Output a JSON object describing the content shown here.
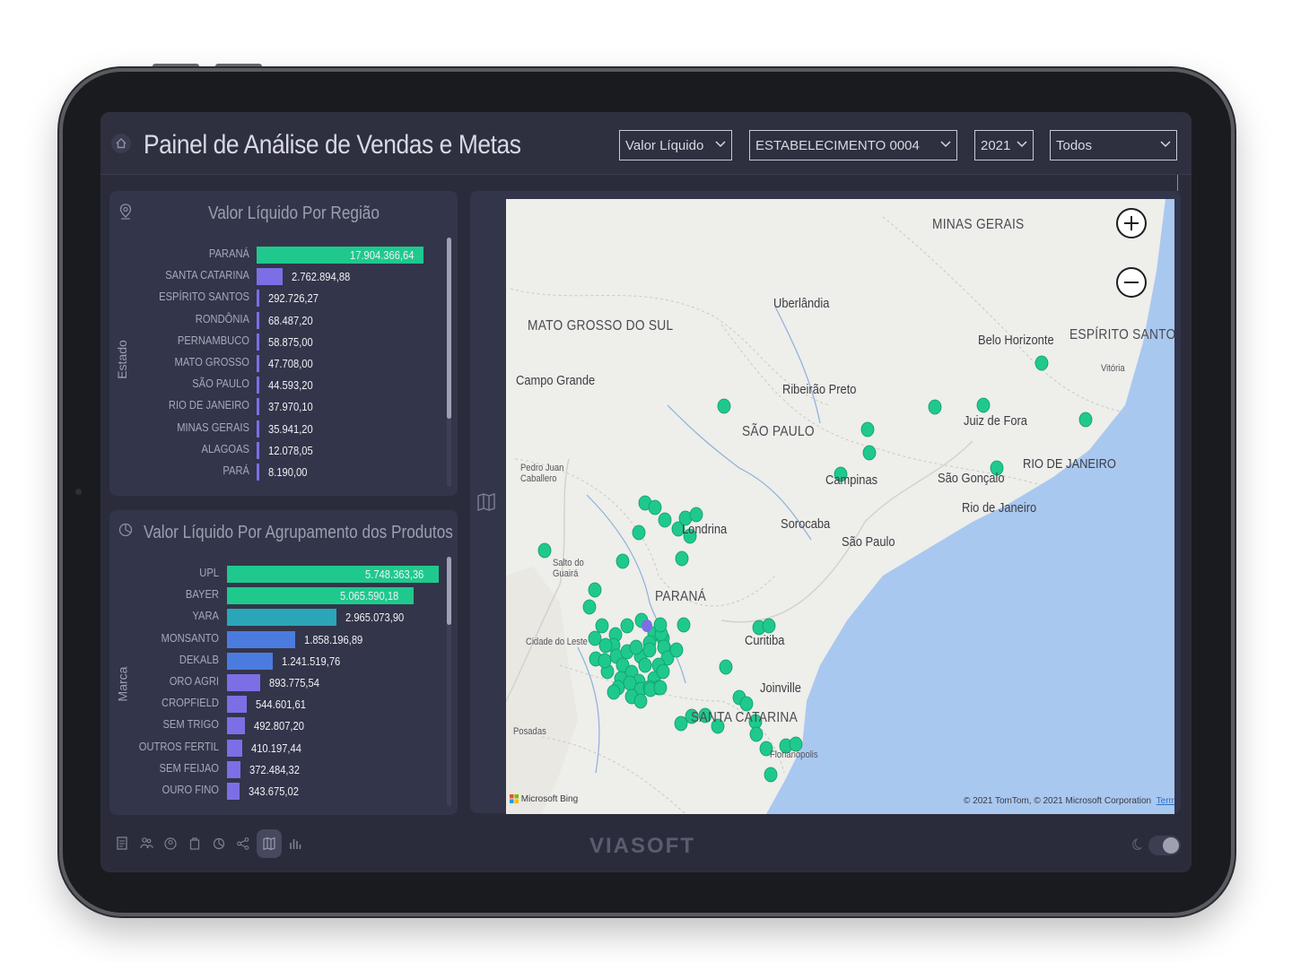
{
  "header": {
    "title": "Painel de Análise de Vendas e Metas",
    "filters": [
      {
        "value": "Valor Líquido"
      },
      {
        "value": "ESTABELECIMENTO 0004"
      },
      {
        "value": "2021"
      },
      {
        "value": "Todos"
      }
    ]
  },
  "region_chart": {
    "title": "Valor Líquido Por Região",
    "axis_title": "Estado",
    "rows": [
      {
        "label": "PARANÁ",
        "value": 17904366.64,
        "display": "17.904.366,64"
      },
      {
        "label": "SANTA CATARINA",
        "value": 2762894.88,
        "display": "2.762.894,88"
      },
      {
        "label": "ESPÍRITO SANTOS",
        "value": 292726.27,
        "display": "292.726,27"
      },
      {
        "label": "RONDÔNIA",
        "value": 68487.2,
        "display": "68.487,20"
      },
      {
        "label": "PERNAMBUCO",
        "value": 58875.0,
        "display": "58.875,00"
      },
      {
        "label": "MATO GROSSO",
        "value": 47708.0,
        "display": "47.708,00"
      },
      {
        "label": "SÃO PAULO",
        "value": 44593.2,
        "display": "44.593,20"
      },
      {
        "label": "RIO DE JANEIRO",
        "value": 37970.1,
        "display": "37.970,10"
      },
      {
        "label": "MINAS GERAIS",
        "value": 35941.2,
        "display": "35.941,20"
      },
      {
        "label": "ALAGOAS",
        "value": 12078.05,
        "display": "12.078,05"
      },
      {
        "label": "PARÁ",
        "value": 8190.0,
        "display": "8.190,00"
      }
    ]
  },
  "product_chart": {
    "title": "Valor Líquido Por Agrupamento dos Produtos",
    "axis_title": "Marca",
    "rows": [
      {
        "label": "UPL",
        "value": 5748363.36,
        "display": "5.748.363,36"
      },
      {
        "label": "BAYER",
        "value": 5065590.18,
        "display": "5.065.590,18"
      },
      {
        "label": "YARA",
        "value": 2965073.9,
        "display": "2.965.073,90"
      },
      {
        "label": "MONSANTO",
        "value": 1858196.89,
        "display": "1.858.196,89"
      },
      {
        "label": "DEKALB",
        "value": 1241519.76,
        "display": "1.241.519,76"
      },
      {
        "label": "ORO AGRI",
        "value": 893775.54,
        "display": "893.775,54"
      },
      {
        "label": "CROPFIELD",
        "value": 544601.61,
        "display": "544.601,61"
      },
      {
        "label": "SEM TRIGO",
        "value": 492807.2,
        "display": "492.807,20"
      },
      {
        "label": "OUTROS FERTIL",
        "value": 410197.44,
        "display": "410.197,44"
      },
      {
        "label": "SEM FEIJAO",
        "value": 372484.32,
        "display": "372.484,32"
      },
      {
        "label": "OURO FINO",
        "value": 343675.02,
        "display": "343.675,02"
      }
    ]
  },
  "map": {
    "states": [
      "MINAS GERAIS",
      "MATO GROSSO DO SUL",
      "ESPÍRITO SANTO",
      "SÃO PAULO",
      "RIO DE JANEIRO",
      "PARANÁ",
      "SANTA CATARINA"
    ],
    "cities": [
      "Uberlândia",
      "Belo Horizonte",
      "Vitória",
      "Campo Grande",
      "Ribeirão Preto",
      "Juiz de Fora",
      "Pedro Juan Caballero",
      "Campinas",
      "São Gonçalo",
      "Rio de Janeiro",
      "Londrina",
      "Sorocaba",
      "São Paulo",
      "Salto do Guairá",
      "Cidade do Leste",
      "Curitiba",
      "Joinville",
      "Posadas",
      "Florianópolis"
    ],
    "attribution": "© 2021 TomTom, © 2021 Microsoft Corporation",
    "terms": "Terms",
    "provider": "Microsoft Bing"
  },
  "footer": {
    "brand": "VIASOFT"
  },
  "colors": {
    "green": "#1fc98d",
    "purple": "#7b6fe6",
    "teal": "#2aa6b8",
    "blue": "#4c7be0",
    "water": "#a9c8f0",
    "land": "#eeeeea"
  }
}
